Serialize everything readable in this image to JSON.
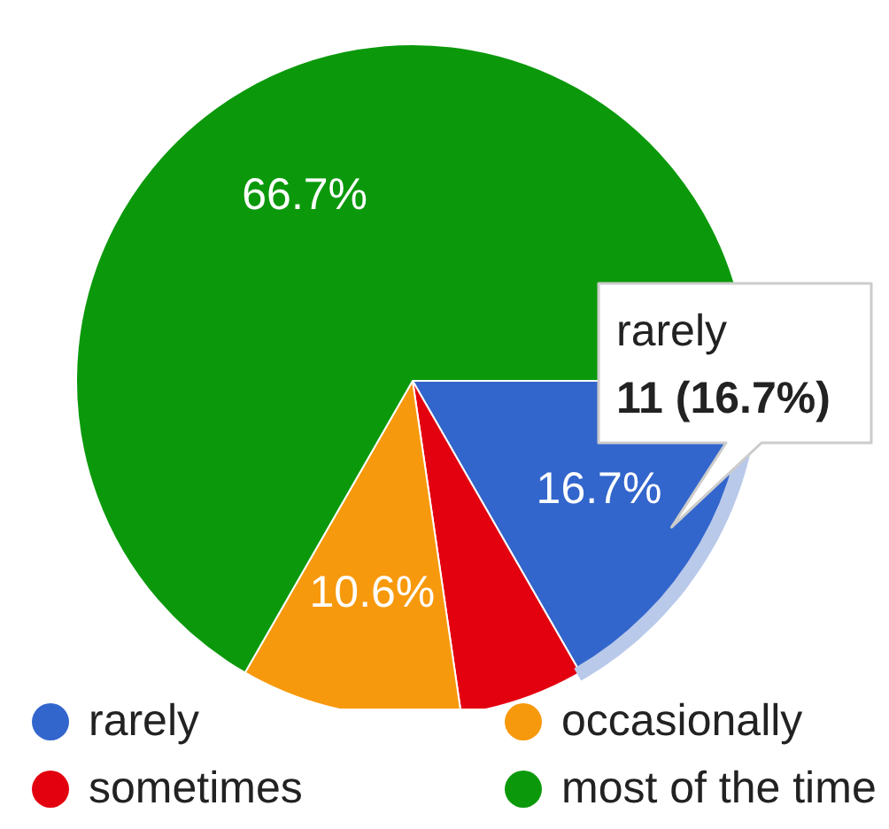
{
  "chart_data": {
    "type": "pie",
    "categories": [
      "rarely",
      "sometimes",
      "occasionally",
      "most of the time"
    ],
    "values": [
      16.7,
      6,
      10.6,
      66.7
    ],
    "colors": [
      "#3366cc",
      "#e3000f",
      "#f7990c",
      "#0b990b"
    ],
    "value_labels": [
      "16.7%",
      null,
      "10.6%",
      "66.7%"
    ],
    "annotations": [
      {
        "text": "rarely",
        "x": "rarely"
      },
      {
        "text": "11 (16.7%)",
        "x": "rarely"
      }
    ],
    "legend": "bottom"
  }
}
